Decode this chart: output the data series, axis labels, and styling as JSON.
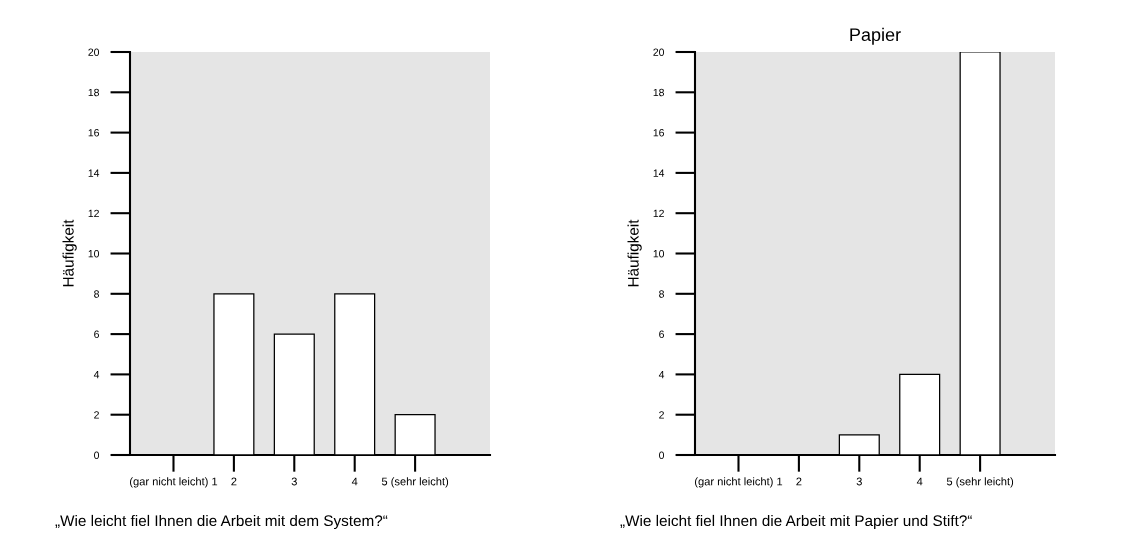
{
  "chart_data": [
    {
      "type": "bar",
      "ylabel": "Häufigkeit",
      "categories": [
        "(gar nicht leicht) 1",
        "2",
        "3",
        "4",
        "5 (sehr leicht)"
      ],
      "values": [
        0,
        8,
        6,
        8,
        2
      ],
      "color": "#ffffff",
      "ylim": [
        0,
        20
      ],
      "yticks": [
        0,
        2,
        4,
        6,
        8,
        10,
        12,
        14,
        16,
        18,
        20
      ],
      "grid": false,
      "annotations": [
        "„Wie leicht fiel Ihnen die Arbeit mit dem System?“"
      ]
    },
    {
      "type": "bar",
      "title": "Papier",
      "ylabel": "Häufigkeit",
      "categories": [
        "(gar nicht leicht) 1",
        "2",
        "3",
        "4",
        "5 (sehr leicht)"
      ],
      "values": [
        0,
        0,
        1,
        4,
        20
      ],
      "color": "#ffffff",
      "ylim": [
        0,
        20
      ],
      "yticks": [
        0,
        2,
        4,
        6,
        8,
        10,
        12,
        14,
        16,
        18,
        20
      ],
      "grid": false,
      "annotations": [
        "„Wie leicht fiel Ihnen die Arbeit mit Papier und Stift?“"
      ]
    }
  ]
}
